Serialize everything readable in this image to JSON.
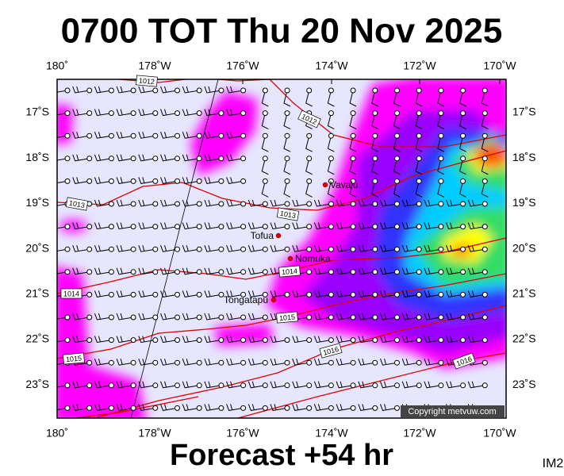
{
  "title": "0700 TOT Thu 20 Nov 2025",
  "longitude_labels": [
    "180˚",
    "178˚W",
    "176˚W",
    "174˚W",
    "172˚W",
    "170˚W"
  ],
  "latitude_labels": [
    "17˚S",
    "18˚S",
    "19˚S",
    "20˚S",
    "21˚S",
    "22˚S",
    "23˚S"
  ],
  "places": [
    "Vava'u",
    "Tofua",
    "Nomuka",
    "Tongatapu"
  ],
  "isobar_labels": [
    "1012",
    "1012",
    "1013",
    "1013",
    "1014",
    "1014",
    "1015",
    "1015",
    "1016",
    "1016"
  ],
  "copyright": "Copyright metvuw.com",
  "footer": "Forecast +54 hr",
  "image_id": "IM2"
}
